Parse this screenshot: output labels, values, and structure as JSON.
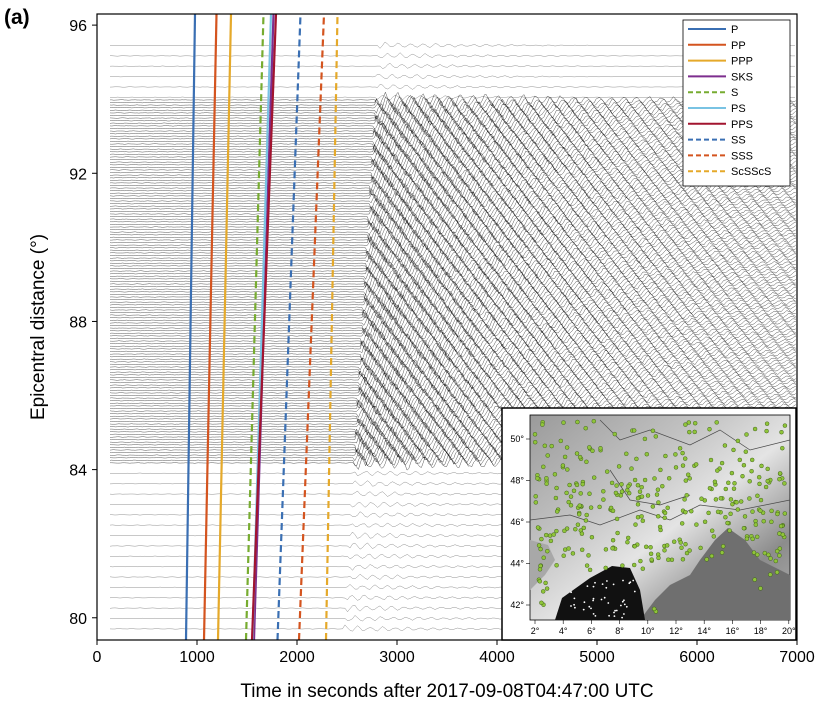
{
  "panel_label": "(a)",
  "chart_data": {
    "type": "line",
    "xlabel": "Time in seconds after 2017-09-08T04:47:00 UTC",
    "ylabel": "Epicentral distance (°)",
    "xlim": [
      0,
      7000
    ],
    "ylim": [
      79.4,
      96.3
    ],
    "x_ticks": [
      0,
      1000,
      2000,
      3000,
      4000,
      5000,
      6000,
      7000
    ],
    "y_ticks": [
      80,
      84,
      88,
      92,
      96
    ],
    "legend_position": "top-right",
    "phases": [
      {
        "name": "P",
        "color": "#3a6fb3",
        "dash": false,
        "times": [
          {
            "dist": 79.4,
            "t": 890
          },
          {
            "dist": 96.3,
            "t": 980
          }
        ]
      },
      {
        "name": "PP",
        "color": "#d4541f",
        "dash": false,
        "times": [
          {
            "dist": 79.4,
            "t": 1070
          },
          {
            "dist": 96.3,
            "t": 1195
          }
        ]
      },
      {
        "name": "PPP",
        "color": "#e5a92a",
        "dash": false,
        "times": [
          {
            "dist": 79.4,
            "t": 1210
          },
          {
            "dist": 96.3,
            "t": 1340
          }
        ]
      },
      {
        "name": "SKS",
        "color": "#7d2e8e",
        "dash": false,
        "times": [
          {
            "dist": 79.4,
            "t": 1570
          },
          {
            "dist": 96.3,
            "t": 1765
          }
        ]
      },
      {
        "name": "S",
        "color": "#77ac30",
        "dash": true,
        "times": [
          {
            "dist": 79.4,
            "t": 1490
          },
          {
            "dist": 96.3,
            "t": 1665
          }
        ]
      },
      {
        "name": "PS",
        "color": "#79c3e3",
        "dash": false,
        "times": [
          {
            "dist": 79.4,
            "t": 1555
          },
          {
            "dist": 96.3,
            "t": 1740
          }
        ]
      },
      {
        "name": "PPS",
        "color": "#a2142f",
        "dash": false,
        "times": [
          {
            "dist": 79.4,
            "t": 1550
          },
          {
            "dist": 96.3,
            "t": 1790
          }
        ]
      },
      {
        "name": "SS",
        "color": "#3a6fb3",
        "dash": true,
        "times": [
          {
            "dist": 79.4,
            "t": 1805
          },
          {
            "dist": 96.3,
            "t": 2035
          }
        ]
      },
      {
        "name": "SSS",
        "color": "#d4541f",
        "dash": true,
        "times": [
          {
            "dist": 79.4,
            "t": 2020
          },
          {
            "dist": 96.3,
            "t": 2270
          }
        ]
      },
      {
        "name": "ScSScS",
        "color": "#e5a92a",
        "dash": true,
        "times": [
          {
            "dist": 79.4,
            "t": 2290
          },
          {
            "dist": 96.3,
            "t": 2405
          }
        ]
      }
    ],
    "waveform_arrival": {
      "dist_low": 80.8,
      "t_low": 2500,
      "dist_high": 95.3,
      "t_high": 2820,
      "dense_band": [
        84.0,
        94.0
      ]
    },
    "inset_map": {
      "lon_ticks": [
        "2°",
        "4°",
        "6°",
        "8°",
        "10°",
        "12°",
        "14°",
        "16°",
        "18°",
        "20°"
      ],
      "lat_ticks": [
        "42°",
        "44°",
        "46°",
        "48°",
        "50°"
      ],
      "station_color": "#8fc43a"
    }
  }
}
